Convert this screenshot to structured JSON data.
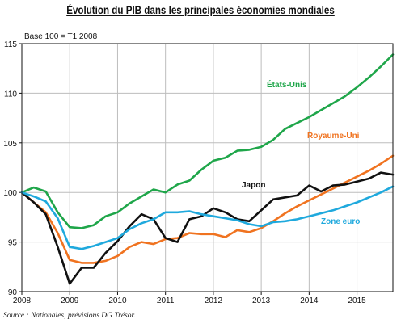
{
  "chart_data": {
    "type": "line",
    "title": "Évolution du PIB dans les principales économies mondiales",
    "subtitle": "Base 100 = T1 2008",
    "xlabel": "",
    "ylabel": "",
    "x_tick_labels": [
      "2008",
      "2009",
      "2010",
      "2011",
      "2012",
      "2013",
      "2014",
      "2015"
    ],
    "y_tick_labels": [
      "90",
      "95",
      "100",
      "105",
      "110",
      "115"
    ],
    "xlim": [
      2008,
      2015.75
    ],
    "ylim": [
      90,
      115
    ],
    "grid": true,
    "legend": "labels next to lines",
    "x": [
      2008.0,
      2008.25,
      2008.5,
      2008.75,
      2009.0,
      2009.25,
      2009.5,
      2009.75,
      2010.0,
      2010.25,
      2010.5,
      2010.75,
      2011.0,
      2011.25,
      2011.5,
      2011.75,
      2012.0,
      2012.25,
      2012.5,
      2012.75,
      2013.0,
      2013.25,
      2013.5,
      2013.75,
      2014.0,
      2014.25,
      2014.5,
      2014.75,
      2015.0,
      2015.25,
      2015.5,
      2015.75
    ],
    "series": [
      {
        "name": "États-Unis",
        "color": "#1fa64a",
        "values": [
          100.0,
          100.5,
          100.1,
          98.0,
          96.5,
          96.4,
          96.7,
          97.6,
          98.0,
          98.9,
          99.6,
          100.3,
          100.0,
          100.8,
          101.2,
          102.3,
          103.2,
          103.5,
          104.2,
          104.3,
          104.6,
          105.3,
          106.4,
          107.0,
          107.6,
          108.3,
          109.0,
          109.7,
          110.6,
          111.6,
          112.7,
          113.9
        ]
      },
      {
        "name": "Royaume-Uni",
        "color": "#f07320",
        "values": [
          100.0,
          99.0,
          98.0,
          95.9,
          93.2,
          92.9,
          92.9,
          93.1,
          93.6,
          94.5,
          95.0,
          94.8,
          95.3,
          95.4,
          95.9,
          95.8,
          95.8,
          95.5,
          96.2,
          96.0,
          96.4,
          97.1,
          97.9,
          98.6,
          99.2,
          99.8,
          100.4,
          101.0,
          101.6,
          102.2,
          102.9,
          103.7
        ]
      },
      {
        "name": "Japon",
        "color": "#111111",
        "values": [
          100.0,
          99.0,
          97.8,
          94.5,
          90.8,
          92.4,
          92.4,
          93.9,
          95.1,
          96.6,
          97.8,
          97.3,
          95.4,
          95.0,
          97.3,
          97.6,
          98.4,
          98.0,
          97.3,
          97.1,
          98.2,
          99.3,
          99.5,
          99.7,
          100.7,
          100.1,
          100.7,
          100.8,
          101.1,
          101.4,
          102.0,
          101.8
        ]
      },
      {
        "name": "Zone euro",
        "color": "#1fa9dd",
        "values": [
          100.0,
          99.6,
          99.1,
          97.4,
          94.5,
          94.3,
          94.6,
          95.0,
          95.4,
          96.3,
          96.9,
          97.3,
          98.0,
          98.0,
          98.1,
          97.8,
          97.6,
          97.4,
          97.2,
          96.8,
          96.6,
          97.0,
          97.1,
          97.3,
          97.6,
          97.9,
          98.2,
          98.6,
          99.0,
          99.5,
          100.0,
          100.6
        ]
      }
    ]
  },
  "source": "Source : Nationales, prévisions DG Trésor."
}
